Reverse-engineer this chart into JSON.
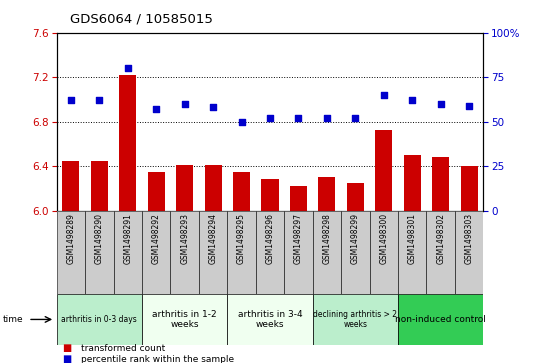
{
  "title": "GDS6064 / 10585015",
  "samples": [
    "GSM1498289",
    "GSM1498290",
    "GSM1498291",
    "GSM1498292",
    "GSM1498293",
    "GSM1498294",
    "GSM1498295",
    "GSM1498296",
    "GSM1498297",
    "GSM1498298",
    "GSM1498299",
    "GSM1498300",
    "GSM1498301",
    "GSM1498302",
    "GSM1498303"
  ],
  "bar_values": [
    6.45,
    6.45,
    7.22,
    6.35,
    6.41,
    6.41,
    6.35,
    6.28,
    6.22,
    6.3,
    6.25,
    6.72,
    6.5,
    6.48,
    6.4
  ],
  "scatter_values": [
    62,
    62,
    80,
    57,
    60,
    58,
    50,
    52,
    52,
    52,
    52,
    65,
    62,
    60,
    59
  ],
  "bar_color": "#cc0000",
  "scatter_color": "#0000cc",
  "ylim_left": [
    6.0,
    7.6
  ],
  "ylim_right": [
    0,
    100
  ],
  "yticks_left": [
    6.0,
    6.4,
    6.8,
    7.2,
    7.6
  ],
  "yticks_right": [
    0,
    25,
    50,
    75,
    100
  ],
  "ytick_labels_right": [
    "0",
    "25",
    "50",
    "75",
    "100%"
  ],
  "grid_values": [
    6.4,
    6.8,
    7.2
  ],
  "groups": [
    {
      "label": "arthritis in 0-3 days",
      "start": 0,
      "end": 3,
      "color": "#bbeecc",
      "small_text": true
    },
    {
      "label": "arthritis in 1-2\nweeks",
      "start": 3,
      "end": 6,
      "color": "#f0fff0",
      "small_text": false
    },
    {
      "label": "arthritis in 3-4\nweeks",
      "start": 6,
      "end": 9,
      "color": "#f0fff0",
      "small_text": false
    },
    {
      "label": "declining arthritis > 2\nweeks",
      "start": 9,
      "end": 12,
      "color": "#bbeecc",
      "small_text": true
    },
    {
      "label": "non-induced control",
      "start": 12,
      "end": 15,
      "color": "#33cc55",
      "small_text": false
    }
  ],
  "sample_col_color": "#cccccc",
  "legend_bar_label": "transformed count",
  "legend_scatter_label": "percentile rank within the sample",
  "background_color": "#ffffff"
}
